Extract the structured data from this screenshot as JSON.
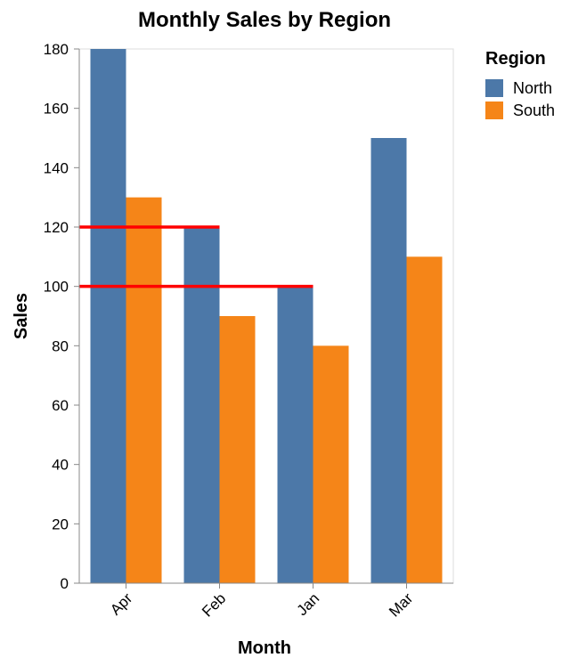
{
  "chart_data": {
    "type": "bar",
    "title": "Monthly Sales by Region",
    "xlabel": "Month",
    "ylabel": "Sales",
    "categories": [
      "Apr",
      "Feb",
      "Jan",
      "Mar"
    ],
    "series": [
      {
        "name": "North",
        "color": "#4c78a8",
        "values": [
          180,
          120,
          100,
          150
        ]
      },
      {
        "name": "South",
        "color": "#f58518",
        "values": [
          130,
          90,
          80,
          110
        ]
      }
    ],
    "ylim": [
      0,
      180
    ],
    "yticks": [
      0,
      20,
      40,
      60,
      80,
      100,
      120,
      140,
      160,
      180
    ],
    "grid": false,
    "legend": {
      "title": "Region",
      "position": "top-right"
    },
    "reference_lines": [
      {
        "value": 120,
        "color": "#ff0000",
        "from_category": "Apr",
        "to_category": "Feb"
      },
      {
        "value": 100,
        "color": "#ff0000",
        "from_category": "Apr",
        "to_category": "Jan"
      }
    ]
  }
}
